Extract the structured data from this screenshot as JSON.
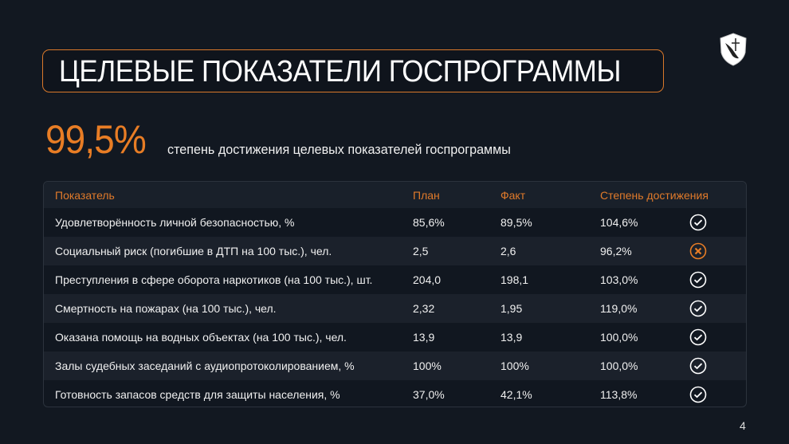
{
  "title": "ЦЕЛЕВЫЕ ПОКАЗАТЕЛИ ГОСПРОГРАММЫ",
  "summary": {
    "value": "99,5%",
    "label": "степень достижения целевых показателей госпрограммы"
  },
  "colors": {
    "accent": "#e87d25",
    "background": "#121821",
    "ok": "#ffffff"
  },
  "table": {
    "headers": [
      "Показатель",
      "План",
      "Факт",
      "Степень достижения"
    ],
    "rows": [
      {
        "name": "Удовлетворённость личной безопасностью, %",
        "plan": "85,6%",
        "fact": "89,5%",
        "degree": "104,6%",
        "status": "check-circle-icon"
      },
      {
        "name": "Социальный риск (погибшие в ДТП на 100 тыс.), чел.",
        "plan": "2,5",
        "fact": "2,6",
        "degree": "96,2%",
        "status": "cross-circle-icon"
      },
      {
        "name": "Преступления в сфере оборота наркотиков (на 100 тыс.), шт.",
        "plan": "204,0",
        "fact": "198,1",
        "degree": "103,0%",
        "status": "check-circle-icon"
      },
      {
        "name": "Смертность на пожарах (на 100 тыс.), чел.",
        "plan": "2,32",
        "fact": "1,95",
        "degree": "119,0%",
        "status": "check-circle-icon"
      },
      {
        "name": "Оказана помощь на водных объектах (на 100 тыс.), чел.",
        "plan": "13,9",
        "fact": "13,9",
        "degree": "100,0%",
        "status": "check-circle-icon"
      },
      {
        "name": "Залы судебных заседаний с аудиопротоколированием, %",
        "plan": "100%",
        "fact": "100%",
        "degree": "100,0%",
        "status": "check-circle-icon"
      },
      {
        "name": "Готовность запасов средств для защиты населения, %",
        "plan": "37,0%",
        "fact": "42,1%",
        "degree": "113,8%",
        "status": "check-circle-icon"
      }
    ]
  },
  "page_number": "4"
}
